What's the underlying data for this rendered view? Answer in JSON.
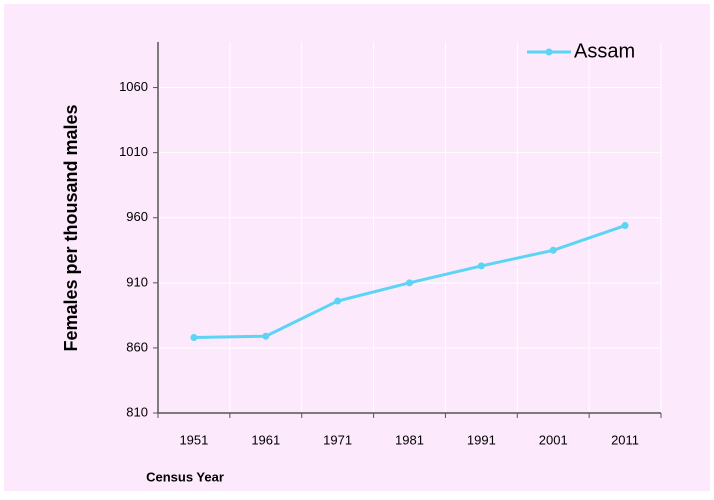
{
  "chart_data": {
    "type": "line",
    "x_label": "Census Year",
    "y_label": "Females per thousand males",
    "categories": [
      "1951",
      "1961",
      "1971",
      "1981",
      "1991",
      "2001",
      "2011"
    ],
    "series": [
      {
        "name": "Assam",
        "color": "#5bd4f5",
        "values": [
          868,
          869,
          896,
          910,
          923,
          935,
          954
        ]
      }
    ],
    "ylim": [
      810,
      1095
    ],
    "yticks": [
      810,
      860,
      910,
      960,
      1010,
      1060
    ],
    "grid": true,
    "legend": "top-right"
  }
}
